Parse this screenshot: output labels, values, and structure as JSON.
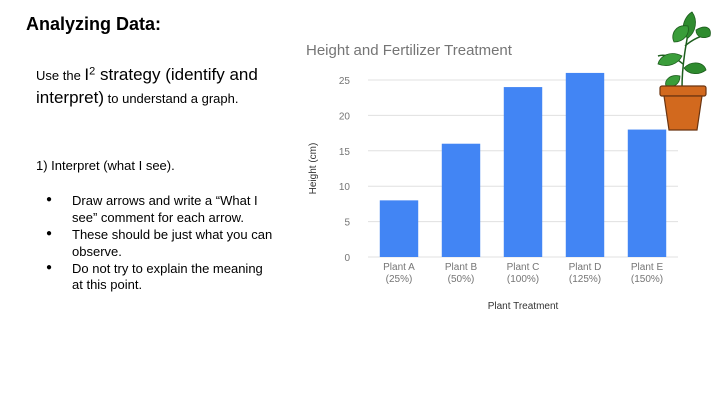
{
  "slide": {
    "title": "Analyzing Data:",
    "intro_prefix": "Use the ",
    "intro_i": "I",
    "intro_sup": "2",
    "intro_strategy": " strategy   (identify and interpret)",
    "intro_suffix": " to understand a graph.",
    "step": "1)  Interpret (what I see).",
    "bullets": [
      "Draw arrows and write a “What I see” comment for each arrow.",
      "These should be just what you can observe.",
      "Do not try to explain the meaning at this point."
    ]
  },
  "chart_data": {
    "type": "bar",
    "title": "Height  and Fertilizer Treatment",
    "xlabel": "Plant Treatment",
    "ylabel": "Height (cm)",
    "ylim": [
      0,
      25
    ],
    "yticks": [
      0,
      5,
      10,
      15,
      20,
      25
    ],
    "grid": true,
    "categories": [
      "Plant A (25%)",
      "Plant B (50%)",
      "Plant C (100%)",
      "Plant D (125%)",
      "Plant E (150%)"
    ],
    "category_lines": [
      [
        "Plant A",
        "(25%)"
      ],
      [
        "Plant B",
        "(50%)"
      ],
      [
        "Plant C",
        "(100%)"
      ],
      [
        "Plant D",
        "(125%)"
      ],
      [
        "Plant E",
        "(150%)"
      ]
    ],
    "values": [
      8,
      16,
      24,
      26,
      18
    ],
    "bar_color": "#4285f4",
    "grid_color": "#e0e0e0"
  },
  "decoration": {
    "plant_icon": "potted-plant-icon",
    "pot_color": "#d2691e",
    "leaf_color": "#2e8b2e"
  }
}
